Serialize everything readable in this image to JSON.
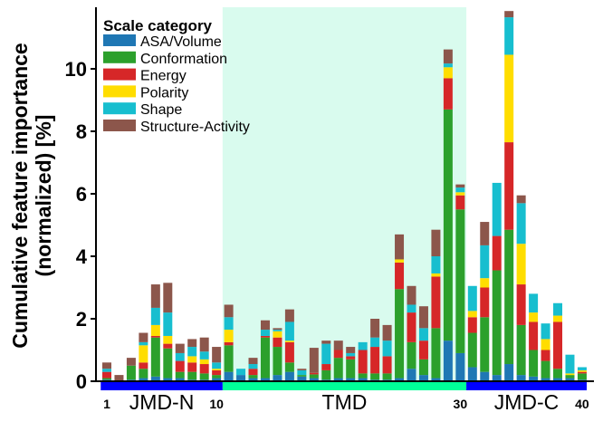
{
  "chart_data": {
    "type": "bar",
    "stacked": true,
    "ylabel_line1": "Cumulative feature importance",
    "ylabel_line2": "(normalized) [%]",
    "ylim": [
      0,
      11.8
    ],
    "yticks": [
      0,
      2,
      4,
      6,
      8,
      10
    ],
    "positions": [
      1,
      2,
      3,
      4,
      5,
      6,
      7,
      8,
      9,
      10,
      11,
      12,
      13,
      14,
      15,
      16,
      17,
      18,
      19,
      20,
      21,
      22,
      23,
      24,
      25,
      26,
      27,
      28,
      29,
      30,
      31,
      32,
      33,
      34,
      35,
      36,
      37,
      38,
      39,
      40
    ],
    "position_labels": [
      {
        "position": 1,
        "label": "1"
      },
      {
        "position": 10,
        "label": "10"
      },
      {
        "position": 30,
        "label": "30"
      },
      {
        "position": 40,
        "label": "40"
      }
    ],
    "regions": [
      {
        "name": "JMD-N",
        "start": 1,
        "end": 10,
        "color": "#0000ff"
      },
      {
        "name": "TMD",
        "start": 11,
        "end": 30,
        "color": "#00ff99",
        "background": "#d9fbee"
      },
      {
        "name": "JMD-C",
        "start": 31,
        "end": 40,
        "color": "#0000ff"
      }
    ],
    "legend": {
      "title": "Scale category",
      "placement": "top-left"
    },
    "series": [
      {
        "name": "ASA/Volume",
        "color": "#1f77b4",
        "values": [
          0.05,
          0,
          0.05,
          0.1,
          0.15,
          0.1,
          0.1,
          0.05,
          0.05,
          0.1,
          0.3,
          0.2,
          0.1,
          0.1,
          0.2,
          0.3,
          0.15,
          0.1,
          0.05,
          0.1,
          0.1,
          0.1,
          0.05,
          0.05,
          0.1,
          0.4,
          0.2,
          0.1,
          1.3,
          0.9,
          0.45,
          0.3,
          0.2,
          0.55,
          0.2,
          0.15,
          0.1,
          0.1,
          0.1,
          0.05
        ]
      },
      {
        "name": "Conformation",
        "color": "#2ca02c",
        "values": [
          0.05,
          0,
          0.45,
          0.3,
          1.25,
          0.95,
          0.2,
          0.25,
          0.2,
          0.1,
          0.85,
          0,
          0.1,
          1.3,
          0.9,
          0.3,
          0.05,
          0.12,
          0.3,
          0.65,
          0.6,
          0.15,
          0.2,
          0.2,
          2.85,
          0.85,
          0.5,
          1.6,
          7.4,
          4.6,
          1.1,
          1.75,
          3.35,
          4.3,
          1.6,
          0.85,
          0.55,
          0.3,
          0.1,
          0.2
        ]
      },
      {
        "name": "Energy",
        "color": "#d62728",
        "values": [
          0.2,
          0,
          0,
          0.2,
          0.05,
          0.15,
          0.35,
          0.3,
          0.3,
          0.15,
          0.1,
          0,
          0.2,
          0.05,
          0.3,
          0.65,
          0,
          0.05,
          0.2,
          0.25,
          0.1,
          0.75,
          0.85,
          0.55,
          0.85,
          0.95,
          0.6,
          1.65,
          1.0,
          0.45,
          0.5,
          0.95,
          1.1,
          2.8,
          1.3,
          0.9,
          0.35,
          1.5,
          0,
          0.05
        ]
      },
      {
        "name": "Polarity",
        "color": "#ffdd00",
        "values": [
          0,
          0,
          0,
          0.55,
          0.35,
          0.25,
          0,
          0.2,
          0.15,
          0.05,
          0.4,
          0,
          0,
          0,
          0.2,
          0.05,
          0,
          0,
          0,
          0,
          0,
          0,
          0,
          0,
          0.1,
          0,
          0,
          0.1,
          0.35,
          0.1,
          0.2,
          0.3,
          0,
          2.8,
          1.3,
          0.3,
          0.35,
          0.2,
          0.05,
          0.05
        ]
      },
      {
        "name": "Shape",
        "color": "#17becf",
        "values": [
          0.1,
          0,
          0,
          0.1,
          0.55,
          0.75,
          0.25,
          0.3,
          0.25,
          0.2,
          0.4,
          0.2,
          0.15,
          0.2,
          0.05,
          0.6,
          0.15,
          0,
          0.65,
          0,
          0.1,
          0.25,
          0.3,
          0.5,
          0,
          0.25,
          0.4,
          0.55,
          0.12,
          0.15,
          0.8,
          1.05,
          1.7,
          1.2,
          1.3,
          0.6,
          0.5,
          0.4,
          0.6,
          0.1
        ]
      },
      {
        "name": "Structure-Activity",
        "color": "#8c564b",
        "values": [
          0.2,
          0.2,
          0.25,
          0.3,
          0.75,
          0.95,
          0.3,
          0.25,
          0.45,
          0.5,
          0.4,
          0,
          0.2,
          0.3,
          0.05,
          0.4,
          0.05,
          0.8,
          0.1,
          0.3,
          0.2,
          0,
          0.6,
          0.5,
          0.8,
          0.6,
          0.7,
          0.85,
          0.45,
          0.1,
          0,
          0.75,
          0,
          0.2,
          0.25,
          0,
          0,
          0,
          0,
          0
        ]
      }
    ]
  }
}
